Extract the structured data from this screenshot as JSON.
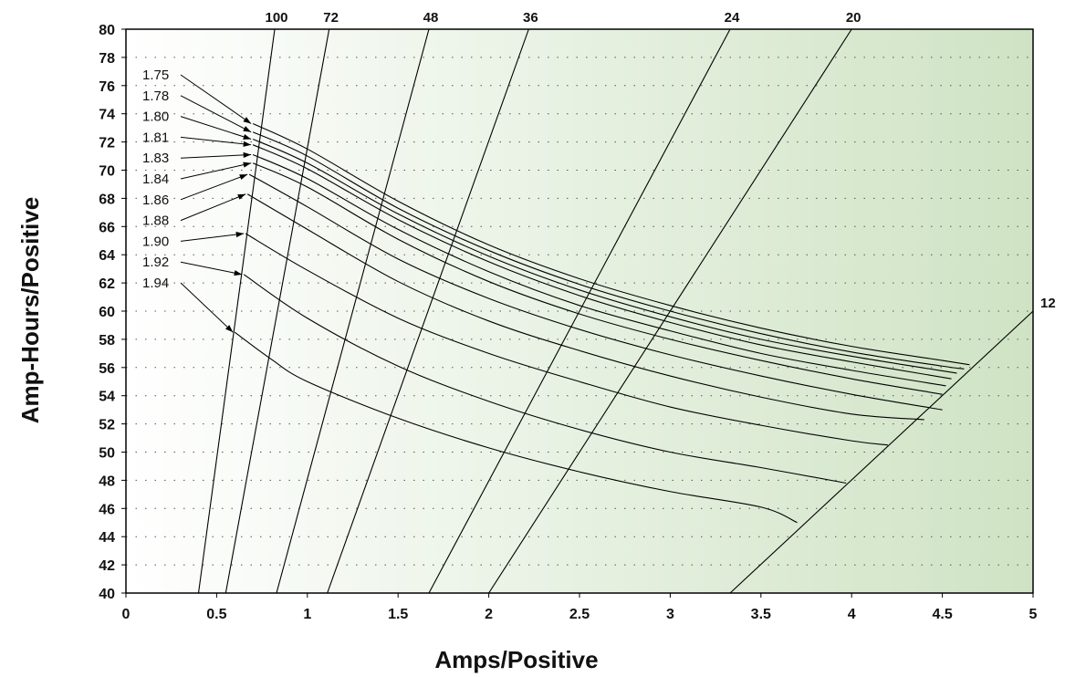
{
  "chart_data": {
    "type": "line",
    "xlabel": "Amps/Positive",
    "ylabel": "Amp-Hours/Positive",
    "xlim": [
      0,
      5
    ],
    "ylim": [
      40,
      80
    ],
    "x_ticks": [
      "0",
      "0.5",
      "1",
      "1.5",
      "2",
      "2.5",
      "3",
      "3.5",
      "4",
      "4.5",
      "5"
    ],
    "y_ticks": [
      "40",
      "42",
      "44",
      "46",
      "48",
      "50",
      "52",
      "54",
      "56",
      "58",
      "60",
      "62",
      "64",
      "66",
      "68",
      "70",
      "72",
      "74",
      "76",
      "78",
      "80"
    ],
    "grid": "dotted",
    "background_gradient": [
      "#ffffff",
      "#cfe3c4"
    ],
    "hour_lines": [
      {
        "label": "100",
        "points": [
          [
            0.4,
            40
          ],
          [
            0.82,
            80
          ]
        ]
      },
      {
        "label": "72",
        "points": [
          [
            0.55,
            40
          ],
          [
            1.12,
            80
          ]
        ]
      },
      {
        "label": "48",
        "points": [
          [
            0.83,
            40
          ],
          [
            1.67,
            80
          ]
        ]
      },
      {
        "label": "36",
        "points": [
          [
            1.11,
            40
          ],
          [
            2.22,
            80
          ]
        ]
      },
      {
        "label": "24",
        "points": [
          [
            1.67,
            40
          ],
          [
            3.33,
            80
          ]
        ]
      },
      {
        "label": "20",
        "points": [
          [
            2.0,
            40
          ],
          [
            4.0,
            80
          ]
        ]
      },
      {
        "label": "12",
        "points": [
          [
            3.33,
            40
          ],
          [
            5.0,
            60
          ]
        ]
      }
    ],
    "series": [
      {
        "name": "1.75",
        "points": [
          [
            0.7,
            73.3
          ],
          [
            1.0,
            71.5
          ],
          [
            1.5,
            67.8
          ],
          [
            2.0,
            64.7
          ],
          [
            2.5,
            62.3
          ],
          [
            3.0,
            60.4
          ],
          [
            3.5,
            58.8
          ],
          [
            4.0,
            57.5
          ],
          [
            4.5,
            56.5
          ],
          [
            4.65,
            56.2
          ]
        ]
      },
      {
        "name": "1.78",
        "points": [
          [
            0.7,
            72.7
          ],
          [
            1.0,
            71.0
          ],
          [
            1.5,
            67.3
          ],
          [
            2.0,
            64.3
          ],
          [
            2.5,
            61.9
          ],
          [
            3.0,
            60.0
          ],
          [
            3.5,
            58.4
          ],
          [
            4.0,
            57.1
          ],
          [
            4.5,
            56.1
          ],
          [
            4.62,
            55.9
          ]
        ]
      },
      {
        "name": "1.80",
        "points": [
          [
            0.7,
            72.2
          ],
          [
            1.0,
            70.5
          ],
          [
            1.5,
            66.9
          ],
          [
            2.0,
            63.9
          ],
          [
            2.5,
            61.5
          ],
          [
            3.0,
            59.6
          ],
          [
            3.5,
            58.0
          ],
          [
            4.0,
            56.8
          ],
          [
            4.58,
            55.6
          ]
        ]
      },
      {
        "name": "1.81",
        "points": [
          [
            0.7,
            71.8
          ],
          [
            1.0,
            70.1
          ],
          [
            1.5,
            66.5
          ],
          [
            2.0,
            63.5
          ],
          [
            2.5,
            61.1
          ],
          [
            3.0,
            59.2
          ],
          [
            3.5,
            57.6
          ],
          [
            4.0,
            56.4
          ],
          [
            4.55,
            55.2
          ]
        ]
      },
      {
        "name": "1.83",
        "points": [
          [
            0.7,
            71.1
          ],
          [
            1.0,
            69.4
          ],
          [
            1.5,
            65.8
          ],
          [
            2.0,
            62.8
          ],
          [
            2.5,
            60.4
          ],
          [
            3.0,
            58.6
          ],
          [
            3.5,
            57.0
          ],
          [
            4.0,
            55.8
          ],
          [
            4.52,
            54.7
          ]
        ]
      },
      {
        "name": "1.84",
        "points": [
          [
            0.7,
            70.5
          ],
          [
            1.0,
            68.8
          ],
          [
            1.5,
            65.1
          ],
          [
            2.0,
            62.1
          ],
          [
            2.5,
            59.8
          ],
          [
            3.0,
            58.0
          ],
          [
            3.5,
            56.5
          ],
          [
            4.0,
            55.2
          ],
          [
            4.5,
            54.1
          ]
        ]
      },
      {
        "name": "1.86",
        "points": [
          [
            0.68,
            69.7
          ],
          [
            1.0,
            67.4
          ],
          [
            1.5,
            63.7
          ],
          [
            2.0,
            60.9
          ],
          [
            2.5,
            58.7
          ],
          [
            3.0,
            56.9
          ],
          [
            3.5,
            55.4
          ],
          [
            4.0,
            54.1
          ],
          [
            4.5,
            53.0
          ]
        ]
      },
      {
        "name": "1.88",
        "points": [
          [
            0.67,
            68.3
          ],
          [
            1.0,
            65.8
          ],
          [
            1.5,
            62.1
          ],
          [
            2.0,
            59.3
          ],
          [
            2.5,
            57.2
          ],
          [
            3.0,
            55.4
          ],
          [
            3.5,
            53.9
          ],
          [
            4.0,
            52.7
          ],
          [
            4.4,
            52.3
          ]
        ]
      },
      {
        "name": "1.90",
        "points": [
          [
            0.66,
            65.5
          ],
          [
            1.0,
            62.9
          ],
          [
            1.5,
            59.5
          ],
          [
            2.0,
            57.0
          ],
          [
            2.5,
            55.0
          ],
          [
            3.0,
            53.2
          ],
          [
            3.5,
            51.9
          ],
          [
            4.0,
            50.8
          ],
          [
            4.2,
            50.5
          ]
        ]
      },
      {
        "name": "1.92",
        "points": [
          [
            0.65,
            62.6
          ],
          [
            1.0,
            59.5
          ],
          [
            1.5,
            56.1
          ],
          [
            2.0,
            53.6
          ],
          [
            2.5,
            51.6
          ],
          [
            3.0,
            50.0
          ],
          [
            3.5,
            48.9
          ],
          [
            3.97,
            47.8
          ]
        ]
      },
      {
        "name": "1.94",
        "points": [
          [
            0.6,
            58.5
          ],
          [
            0.8,
            56.6
          ],
          [
            1.0,
            55.0
          ],
          [
            1.5,
            52.4
          ],
          [
            2.0,
            50.3
          ],
          [
            2.5,
            48.6
          ],
          [
            3.0,
            47.2
          ],
          [
            3.5,
            46.1
          ],
          [
            3.7,
            45.0
          ]
        ]
      }
    ]
  }
}
